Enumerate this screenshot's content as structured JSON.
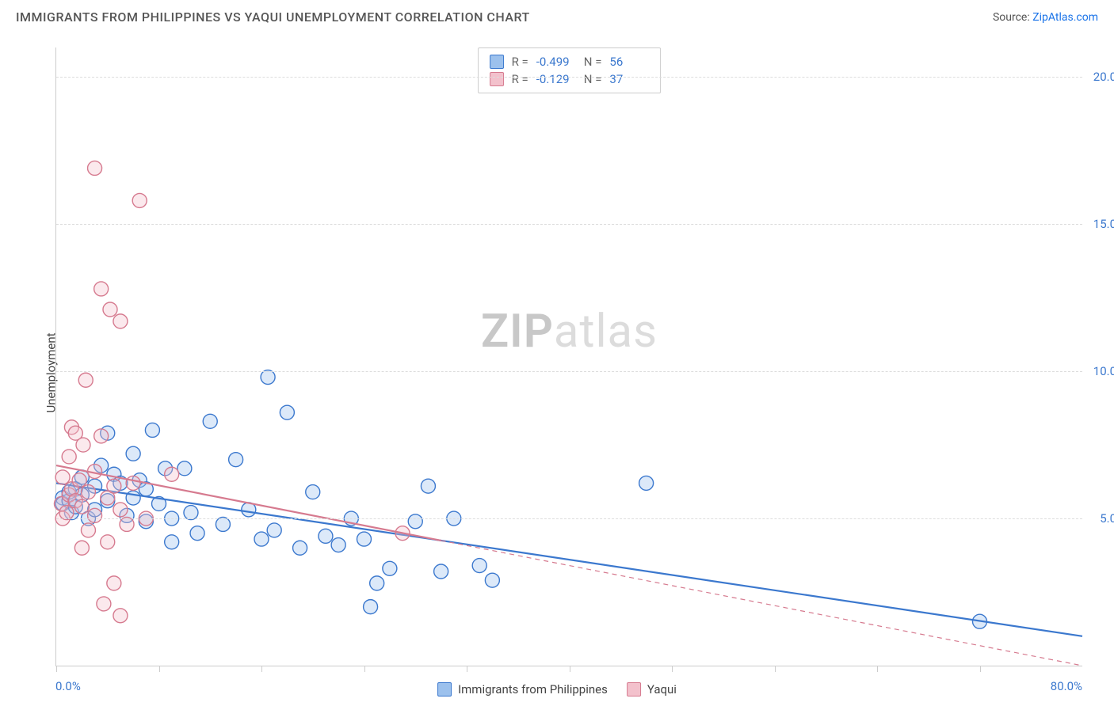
{
  "header": {
    "title": "IMMIGRANTS FROM PHILIPPINES VS YAQUI UNEMPLOYMENT CORRELATION CHART",
    "source_prefix": "Source: ",
    "source_link": "ZipAtlas.com"
  },
  "chart": {
    "type": "scatter",
    "ylabel": "Unemployment",
    "watermark_a": "ZIP",
    "watermark_b": "atlas",
    "background_color": "#ffffff",
    "grid_color": "#dddddd",
    "axis_color": "#cccccc",
    "tick_label_color": "#3b78ce",
    "xlim": [
      0,
      80
    ],
    "ylim": [
      0,
      21
    ],
    "x_min_label": "0.0%",
    "x_max_label": "80.0%",
    "xtick_positions": [
      0,
      8,
      16,
      24,
      32,
      40,
      48,
      56,
      64,
      72
    ],
    "yticks": [
      {
        "v": 5,
        "label": "5.0%"
      },
      {
        "v": 10,
        "label": "10.0%"
      },
      {
        "v": 15,
        "label": "15.0%"
      },
      {
        "v": 20,
        "label": "20.0%"
      }
    ],
    "marker_radius": 9,
    "marker_stroke_width": 1.4,
    "marker_fill_opacity": 0.35,
    "trend_line_width": 2.2,
    "trend_dash": "6,5",
    "series": [
      {
        "key": "philippines",
        "label": "Immigrants from Philippines",
        "color_stroke": "#3b78ce",
        "color_fill": "#9cc1ed",
        "R": "-0.499",
        "N": "56",
        "trend": {
          "y_at_xmin": 6.2,
          "y_at_xmax": 1.0,
          "solid_until_x": 80
        },
        "points": [
          [
            0.5,
            5.7
          ],
          [
            0.5,
            5.5
          ],
          [
            1.0,
            5.6
          ],
          [
            1.0,
            5.9
          ],
          [
            1.2,
            5.2
          ],
          [
            1.5,
            6.0
          ],
          [
            1.5,
            5.4
          ],
          [
            2.0,
            5.8
          ],
          [
            2.0,
            6.4
          ],
          [
            2.5,
            5.0
          ],
          [
            3.0,
            6.1
          ],
          [
            3.0,
            5.3
          ],
          [
            3.5,
            6.8
          ],
          [
            4.0,
            7.9
          ],
          [
            4.0,
            5.6
          ],
          [
            4.5,
            6.5
          ],
          [
            5.0,
            6.2
          ],
          [
            5.5,
            5.1
          ],
          [
            6.0,
            7.2
          ],
          [
            6.0,
            5.7
          ],
          [
            6.5,
            6.3
          ],
          [
            7.0,
            4.9
          ],
          [
            7.0,
            6.0
          ],
          [
            7.5,
            8.0
          ],
          [
            8.0,
            5.5
          ],
          [
            8.5,
            6.7
          ],
          [
            9.0,
            5.0
          ],
          [
            9.0,
            4.2
          ],
          [
            10.0,
            6.7
          ],
          [
            10.5,
            5.2
          ],
          [
            11.0,
            4.5
          ],
          [
            12.0,
            8.3
          ],
          [
            13.0,
            4.8
          ],
          [
            14.0,
            7.0
          ],
          [
            15.0,
            5.3
          ],
          [
            16.0,
            4.3
          ],
          [
            16.5,
            9.8
          ],
          [
            17.0,
            4.6
          ],
          [
            18.0,
            8.6
          ],
          [
            19.0,
            4.0
          ],
          [
            20.0,
            5.9
          ],
          [
            21.0,
            4.4
          ],
          [
            22.0,
            4.1
          ],
          [
            23.0,
            5.0
          ],
          [
            24.0,
            4.3
          ],
          [
            24.5,
            2.0
          ],
          [
            25.0,
            2.8
          ],
          [
            26.0,
            3.3
          ],
          [
            28.0,
            4.9
          ],
          [
            29.0,
            6.1
          ],
          [
            30.0,
            3.2
          ],
          [
            31.0,
            5.0
          ],
          [
            33.0,
            3.4
          ],
          [
            34.0,
            2.9
          ],
          [
            46.0,
            6.2
          ],
          [
            72.0,
            1.5
          ]
        ]
      },
      {
        "key": "yaqui",
        "label": "Yaqui",
        "color_stroke": "#d67a8f",
        "color_fill": "#f3c1cc",
        "R": "-0.129",
        "N": "37",
        "trend": {
          "y_at_xmin": 6.8,
          "y_at_xmax": 0.0,
          "solid_until_x": 30
        },
        "points": [
          [
            0.4,
            5.5
          ],
          [
            0.5,
            5.0
          ],
          [
            0.5,
            6.4
          ],
          [
            0.8,
            5.2
          ],
          [
            1.0,
            5.8
          ],
          [
            1.0,
            7.1
          ],
          [
            1.2,
            6.0
          ],
          [
            1.2,
            8.1
          ],
          [
            1.5,
            5.6
          ],
          [
            1.5,
            7.9
          ],
          [
            1.8,
            6.3
          ],
          [
            2.0,
            5.4
          ],
          [
            2.0,
            4.0
          ],
          [
            2.1,
            7.5
          ],
          [
            2.3,
            9.7
          ],
          [
            2.5,
            5.9
          ],
          [
            2.5,
            4.6
          ],
          [
            3.0,
            6.6
          ],
          [
            3.0,
            5.1
          ],
          [
            3.0,
            16.9
          ],
          [
            3.5,
            12.8
          ],
          [
            3.5,
            7.8
          ],
          [
            3.7,
            2.1
          ],
          [
            4.0,
            5.7
          ],
          [
            4.0,
            4.2
          ],
          [
            4.2,
            12.1
          ],
          [
            4.5,
            6.1
          ],
          [
            4.5,
            2.8
          ],
          [
            5.0,
            1.7
          ],
          [
            5.0,
            11.7
          ],
          [
            5.0,
            5.3
          ],
          [
            5.5,
            4.8
          ],
          [
            6.0,
            6.2
          ],
          [
            6.5,
            15.8
          ],
          [
            7.0,
            5.0
          ],
          [
            9.0,
            6.5
          ],
          [
            27.0,
            4.5
          ]
        ]
      }
    ],
    "stats_box": {
      "R_label": "R =",
      "N_label": "N ="
    }
  }
}
